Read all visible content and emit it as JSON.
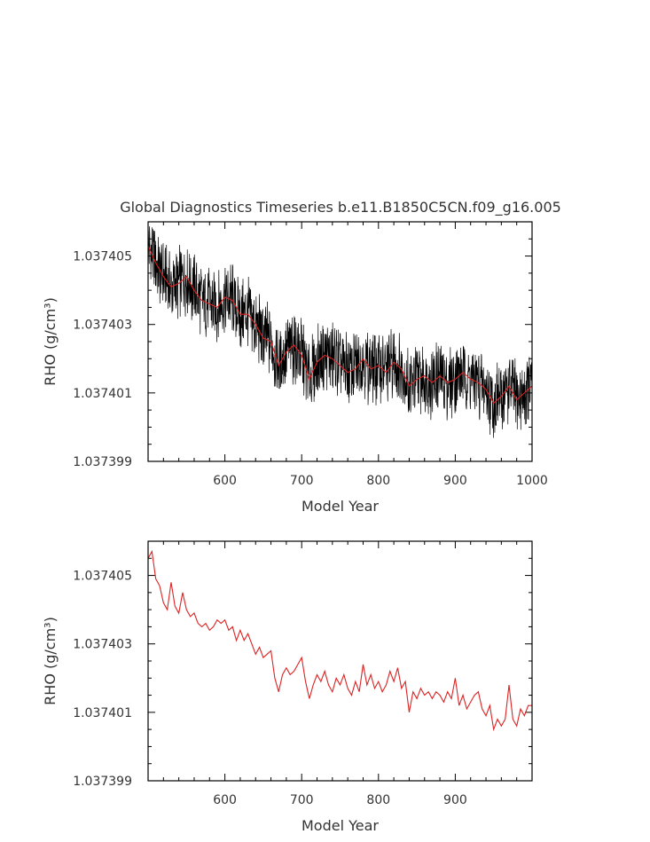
{
  "title": "Global Diagnostics Timeseries b.e11.B1850C5CN.f09_g16.005",
  "chart_data": [
    {
      "type": "line",
      "title": "Global Diagnostics Timeseries b.e11.B1850C5CN.f09_g16.005",
      "xlabel": "Model Year",
      "ylabel": "RHO (g/cm³)",
      "xlim": [
        500,
        1000
      ],
      "ylim": [
        1.037399,
        1.037406
      ],
      "xticks": [
        600,
        700,
        800,
        900,
        1000
      ],
      "yticks": [
        1.037399,
        1.037401,
        1.037403,
        1.037405
      ],
      "ytick_labels": [
        "1.037399",
        "1.037401",
        "1.037403",
        "1.037405"
      ],
      "series": [
        {
          "name": "",
          "color": "#000000",
          "kind": "monthly",
          "x": [
            500,
            510,
            520,
            530,
            540,
            550,
            560,
            570,
            580,
            590,
            600,
            610,
            620,
            630,
            640,
            650,
            660,
            670,
            680,
            690,
            700,
            710,
            720,
            730,
            740,
            750,
            760,
            770,
            780,
            790,
            800,
            810,
            820,
            830,
            840,
            850,
            860,
            870,
            880,
            890,
            900,
            910,
            920,
            930,
            940,
            950,
            960,
            970,
            980,
            990,
            1000
          ],
          "y": [
            1.0374053,
            1.0374048,
            1.0374044,
            1.0374041,
            1.0374042,
            1.0374044,
            1.037404,
            1.0374037,
            1.0374036,
            1.0374035,
            1.0374038,
            1.0374037,
            1.0374033,
            1.0374033,
            1.037403,
            1.0374026,
            1.0374025,
            1.0374018,
            1.0374022,
            1.0374024,
            1.0374021,
            1.0374014,
            1.0374019,
            1.0374021,
            1.037402,
            1.0374018,
            1.0374016,
            1.0374017,
            1.037402,
            1.0374017,
            1.0374018,
            1.0374016,
            1.0374019,
            1.0374017,
            1.0374012,
            1.0374014,
            1.0374015,
            1.0374013,
            1.0374015,
            1.0374013,
            1.0374014,
            1.0374016,
            1.0374014,
            1.0374013,
            1.0374011,
            1.0374007,
            1.0374009,
            1.0374012,
            1.0374008,
            1.037401,
            1.0374012
          ]
        },
        {
          "name": "",
          "color": "#dd2222",
          "kind": "annual",
          "x": [
            500,
            510,
            520,
            530,
            540,
            550,
            560,
            570,
            580,
            590,
            600,
            610,
            620,
            630,
            640,
            650,
            660,
            670,
            680,
            690,
            700,
            710,
            720,
            730,
            740,
            750,
            760,
            770,
            780,
            790,
            800,
            810,
            820,
            830,
            840,
            850,
            860,
            870,
            880,
            890,
            900,
            910,
            920,
            930,
            940,
            950,
            960,
            970,
            980,
            990,
            1000
          ],
          "y": [
            1.0374053,
            1.0374048,
            1.0374044,
            1.0374041,
            1.0374042,
            1.0374044,
            1.037404,
            1.0374037,
            1.0374036,
            1.0374035,
            1.0374038,
            1.0374037,
            1.0374033,
            1.0374033,
            1.037403,
            1.0374026,
            1.0374025,
            1.0374018,
            1.0374022,
            1.0374024,
            1.0374021,
            1.0374014,
            1.0374019,
            1.0374021,
            1.037402,
            1.0374018,
            1.0374016,
            1.0374017,
            1.037402,
            1.0374017,
            1.0374018,
            1.0374016,
            1.0374019,
            1.0374017,
            1.0374012,
            1.0374014,
            1.0374015,
            1.0374013,
            1.0374015,
            1.0374013,
            1.0374014,
            1.0374016,
            1.0374014,
            1.0374013,
            1.0374011,
            1.0374007,
            1.0374009,
            1.0374012,
            1.0374008,
            1.037401,
            1.0374012
          ]
        }
      ]
    },
    {
      "type": "line",
      "title": "",
      "xlabel": "Model Year",
      "ylabel": "RHO (g/cm³)",
      "xlim": [
        500,
        1000
      ],
      "ylim": [
        1.037399,
        1.037406
      ],
      "xticks": [
        600,
        700,
        800,
        900
      ],
      "yticks": [
        1.037399,
        1.037401,
        1.037403,
        1.037405
      ],
      "ytick_labels": [
        "1.037399",
        "1.037401",
        "1.037403",
        "1.037405"
      ],
      "series": [
        {
          "name": "",
          "color": "#dd2222",
          "kind": "annual",
          "x": [
            500,
            505,
            510,
            515,
            520,
            525,
            530,
            535,
            540,
            545,
            550,
            555,
            560,
            565,
            570,
            575,
            580,
            585,
            590,
            595,
            600,
            605,
            610,
            615,
            620,
            625,
            630,
            635,
            640,
            645,
            650,
            655,
            660,
            665,
            670,
            675,
            680,
            685,
            690,
            695,
            700,
            705,
            710,
            715,
            720,
            725,
            730,
            735,
            740,
            745,
            750,
            755,
            760,
            765,
            770,
            775,
            780,
            785,
            790,
            795,
            800,
            805,
            810,
            815,
            820,
            825,
            830,
            835,
            840,
            845,
            850,
            855,
            860,
            865,
            870,
            875,
            880,
            885,
            890,
            895,
            900,
            905,
            910,
            915,
            920,
            925,
            930,
            935,
            940,
            945,
            950,
            955,
            960,
            965,
            970,
            975,
            980,
            985,
            990,
            995,
            1000
          ],
          "y": [
            1.0374055,
            1.0374057,
            1.0374049,
            1.0374047,
            1.0374042,
            1.037404,
            1.0374048,
            1.0374041,
            1.0374039,
            1.0374045,
            1.037404,
            1.0374038,
            1.0374039,
            1.0374036,
            1.0374035,
            1.0374036,
            1.0374034,
            1.0374035,
            1.0374037,
            1.0374036,
            1.0374037,
            1.0374034,
            1.0374035,
            1.0374031,
            1.0374034,
            1.0374031,
            1.0374033,
            1.037403,
            1.0374027,
            1.0374029,
            1.0374026,
            1.0374027,
            1.0374028,
            1.037402,
            1.0374016,
            1.0374021,
            1.0374023,
            1.0374021,
            1.0374022,
            1.0374024,
            1.0374026,
            1.0374019,
            1.0374014,
            1.0374018,
            1.0374021,
            1.0374019,
            1.0374022,
            1.0374018,
            1.0374016,
            1.037402,
            1.0374018,
            1.0374021,
            1.0374017,
            1.0374015,
            1.0374019,
            1.0374016,
            1.0374024,
            1.0374018,
            1.0374021,
            1.0374017,
            1.0374019,
            1.0374016,
            1.0374018,
            1.0374022,
            1.0374019,
            1.0374023,
            1.0374017,
            1.0374019,
            1.037401,
            1.0374016,
            1.0374014,
            1.0374017,
            1.0374015,
            1.0374016,
            1.0374014,
            1.0374016,
            1.0374015,
            1.0374013,
            1.0374016,
            1.0374014,
            1.037402,
            1.0374012,
            1.0374015,
            1.0374011,
            1.0374013,
            1.0374015,
            1.0374016,
            1.0374011,
            1.0374009,
            1.0374012,
            1.0374005,
            1.0374008,
            1.0374006,
            1.0374008,
            1.0374018,
            1.0374008,
            1.0374006,
            1.0374011,
            1.0374009,
            1.0374012,
            1.0374012
          ]
        }
      ]
    }
  ]
}
